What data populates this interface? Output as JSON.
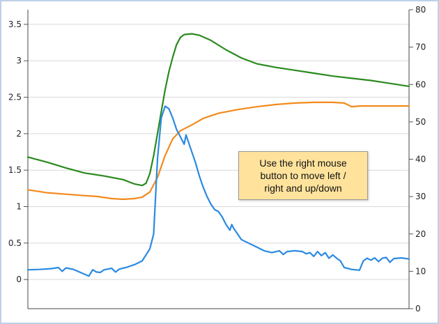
{
  "chart_data": {
    "type": "line",
    "title": "",
    "xlabel": "",
    "ylabel": "",
    "grid": true,
    "x_range": [
      0,
      100
    ],
    "y_left": {
      "range": [
        -0.4,
        3.7
      ],
      "ticks": [
        0,
        0.5,
        1,
        1.5,
        2,
        2.5,
        3,
        3.5
      ],
      "tick_labels": [
        "0",
        "0.5",
        "1",
        "1.5",
        "2",
        "2.5",
        "3",
        "3.5"
      ]
    },
    "y_right": {
      "range": [
        0,
        80
      ],
      "ticks": [
        0,
        10,
        20,
        30,
        40,
        50,
        60,
        70,
        80
      ],
      "tick_labels": [
        "0",
        "10",
        "20",
        "30",
        "40",
        "50",
        "60",
        "70",
        "80"
      ]
    },
    "series": [
      {
        "axis": "left",
        "color": "#2a8a1e",
        "points": [
          [
            0,
            1.68
          ],
          [
            5,
            1.61
          ],
          [
            10,
            1.53
          ],
          [
            15,
            1.46
          ],
          [
            20,
            1.42
          ],
          [
            25,
            1.37
          ],
          [
            28,
            1.31
          ],
          [
            30,
            1.29
          ],
          [
            31,
            1.32
          ],
          [
            32,
            1.45
          ],
          [
            33,
            1.7
          ],
          [
            34,
            2.0
          ],
          [
            35,
            2.3
          ],
          [
            36,
            2.6
          ],
          [
            37,
            2.85
          ],
          [
            38,
            3.05
          ],
          [
            39,
            3.22
          ],
          [
            40,
            3.32
          ],
          [
            41,
            3.36
          ],
          [
            43,
            3.37
          ],
          [
            45,
            3.35
          ],
          [
            48,
            3.28
          ],
          [
            52,
            3.15
          ],
          [
            56,
            3.04
          ],
          [
            60,
            2.96
          ],
          [
            65,
            2.91
          ],
          [
            70,
            2.87
          ],
          [
            75,
            2.83
          ],
          [
            80,
            2.79
          ],
          [
            85,
            2.76
          ],
          [
            90,
            2.73
          ],
          [
            95,
            2.69
          ],
          [
            100,
            2.65
          ]
        ]
      },
      {
        "axis": "left",
        "color": "#f28a1c",
        "points": [
          [
            0,
            1.23
          ],
          [
            5,
            1.19
          ],
          [
            10,
            1.17
          ],
          [
            15,
            1.15
          ],
          [
            18,
            1.14
          ],
          [
            22,
            1.11
          ],
          [
            25,
            1.1
          ],
          [
            28,
            1.11
          ],
          [
            30,
            1.13
          ],
          [
            32,
            1.2
          ],
          [
            34,
            1.4
          ],
          [
            36,
            1.7
          ],
          [
            38,
            1.93
          ],
          [
            40,
            2.04
          ],
          [
            43,
            2.12
          ],
          [
            46,
            2.21
          ],
          [
            50,
            2.28
          ],
          [
            55,
            2.33
          ],
          [
            60,
            2.37
          ],
          [
            65,
            2.4
          ],
          [
            70,
            2.42
          ],
          [
            75,
            2.43
          ],
          [
            80,
            2.43
          ],
          [
            83,
            2.42
          ],
          [
            85,
            2.37
          ],
          [
            87,
            2.38
          ],
          [
            90,
            2.38
          ],
          [
            95,
            2.38
          ],
          [
            100,
            2.38
          ]
        ]
      },
      {
        "axis": "right",
        "color": "#2a8ae2",
        "points": [
          [
            0,
            10.4
          ],
          [
            3,
            10.5
          ],
          [
            6,
            10.7
          ],
          [
            8,
            11.0
          ],
          [
            9,
            10.0
          ],
          [
            10,
            10.9
          ],
          [
            12,
            10.5
          ],
          [
            14,
            9.6
          ],
          [
            16,
            8.7
          ],
          [
            17,
            10.4
          ],
          [
            18,
            9.8
          ],
          [
            19,
            9.7
          ],
          [
            20,
            10.4
          ],
          [
            22,
            10.8
          ],
          [
            23,
            9.8
          ],
          [
            24,
            10.6
          ],
          [
            26,
            11.1
          ],
          [
            28,
            11.8
          ],
          [
            30,
            12.8
          ],
          [
            32,
            16.0
          ],
          [
            33,
            20.0
          ],
          [
            34,
            40.0
          ],
          [
            35,
            51.0
          ],
          [
            36,
            54.2
          ],
          [
            37,
            53.5
          ],
          [
            38,
            51.0
          ],
          [
            39,
            48.0
          ],
          [
            40,
            46.0
          ],
          [
            41,
            44.0
          ],
          [
            41.5,
            46.5
          ],
          [
            42,
            45.0
          ],
          [
            43,
            42.0
          ],
          [
            44,
            39.0
          ],
          [
            45,
            35.5
          ],
          [
            46,
            32.5
          ],
          [
            47,
            30.0
          ],
          [
            48,
            28.0
          ],
          [
            49,
            26.5
          ],
          [
            50,
            26.0
          ],
          [
            51,
            24.5
          ],
          [
            52,
            22.5
          ],
          [
            53,
            21.0
          ],
          [
            53.5,
            22.5
          ],
          [
            54,
            21.5
          ],
          [
            55,
            20.0
          ],
          [
            56,
            18.5
          ],
          [
            58,
            17.5
          ],
          [
            60,
            16.5
          ],
          [
            62,
            15.5
          ],
          [
            64,
            15.0
          ],
          [
            66,
            15.5
          ],
          [
            67,
            14.5
          ],
          [
            68,
            15.3
          ],
          [
            70,
            15.5
          ],
          [
            72,
            15.3
          ],
          [
            73,
            14.7
          ],
          [
            74,
            15.0
          ],
          [
            75,
            14.0
          ],
          [
            76,
            15.3
          ],
          [
            77,
            14.2
          ],
          [
            78,
            15.0
          ],
          [
            79,
            13.5
          ],
          [
            80,
            14.4
          ],
          [
            81,
            13.5
          ],
          [
            82,
            12.8
          ],
          [
            83,
            11.0
          ],
          [
            85,
            10.5
          ],
          [
            87,
            10.3
          ],
          [
            88,
            12.8
          ],
          [
            89,
            13.5
          ],
          [
            90,
            13.0
          ],
          [
            91,
            13.6
          ],
          [
            92,
            12.6
          ],
          [
            93,
            13.5
          ],
          [
            94,
            13.7
          ],
          [
            95,
            12.4
          ],
          [
            96,
            13.4
          ],
          [
            97,
            13.5
          ],
          [
            98,
            13.6
          ],
          [
            100,
            13.3
          ]
        ]
      }
    ]
  },
  "hint": {
    "line1": "Use the right mouse",
    "line2": "button to move left /",
    "line3": "right and up/down"
  }
}
